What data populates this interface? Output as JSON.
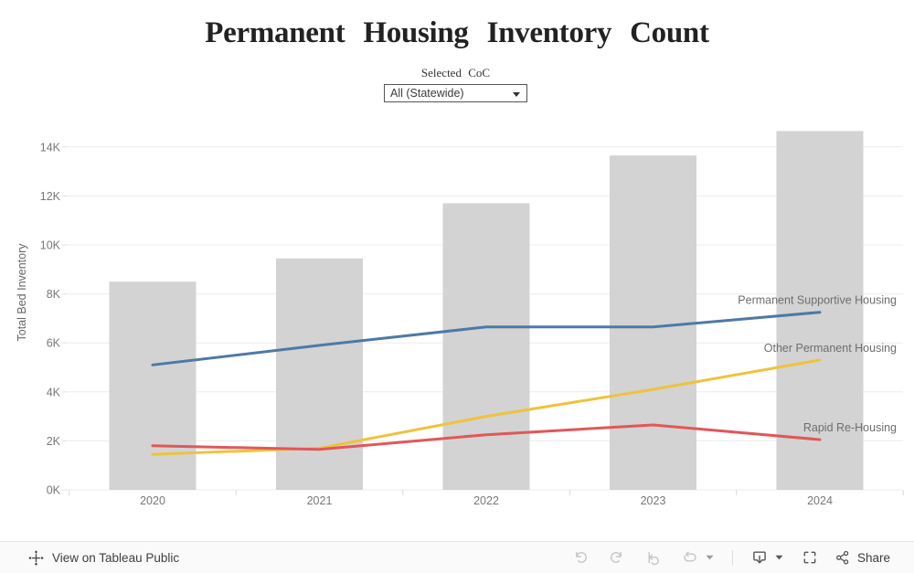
{
  "header": {
    "title": "Permanent Housing Inventory Count"
  },
  "filter": {
    "label": "Selected CoC",
    "value": "All (Statewide)"
  },
  "chart_data": {
    "type": "combo-bar-line",
    "title": "Permanent Housing Inventory Count",
    "xlabel": "",
    "ylabel": "Total Bed Inventory",
    "categories": [
      "2020",
      "2021",
      "2022",
      "2023",
      "2024"
    ],
    "bar_series": {
      "name": "Total Bed Inventory",
      "color": "#d3d3d3",
      "values": [
        8500,
        9450,
        11700,
        13650,
        14650
      ]
    },
    "series": [
      {
        "name": "Permanent Supportive Housing",
        "color": "#4e79a7",
        "values": [
          5100,
          5900,
          6650,
          6650,
          7250
        ]
      },
      {
        "name": "Other Permanent Housing",
        "color": "#eec33d",
        "values": [
          1450,
          1700,
          3000,
          4100,
          5300
        ]
      },
      {
        "name": "Rapid Re-Housing",
        "color": "#e15759",
        "values": [
          1800,
          1650,
          2250,
          2650,
          2050
        ]
      }
    ],
    "ylim": [
      0,
      15000
    ],
    "ytick_step": 2000,
    "ytick_suffix": "K",
    "grid": true,
    "legend_position": "right-end-of-line"
  },
  "footer": {
    "view_link": "View on Tableau Public",
    "share_label": "Share"
  }
}
